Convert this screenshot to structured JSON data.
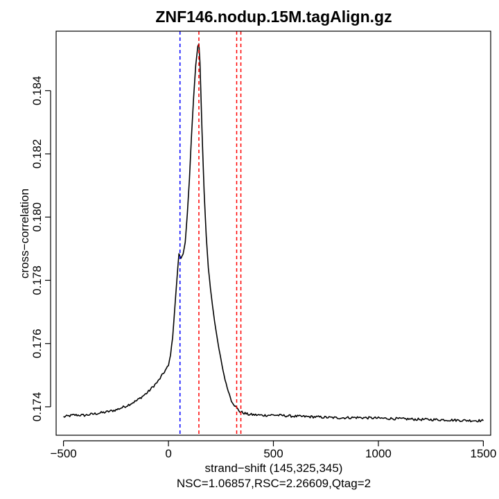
{
  "chart_data": {
    "type": "line",
    "title": "ZNF146.nodup.15M.tagAlign.gz",
    "xlabel": "strand−shift (145,325,345)",
    "subtitle": "NSC=1.06857,RSC=2.26609,Qtag=2",
    "ylabel": "cross−correlation",
    "xlim": [
      -535,
      1535
    ],
    "ylim": [
      0.1731,
      0.18588
    ],
    "xticks": [
      -500,
      0,
      500,
      1000,
      1500
    ],
    "xtick_labels": [
      "−500",
      "0",
      "500",
      "1000",
      "1500"
    ],
    "yticks": [
      0.174,
      0.176,
      0.178,
      0.18,
      0.182,
      0.184
    ],
    "ytick_labels": [
      "0.174",
      "0.176",
      "0.178",
      "0.180",
      "0.182",
      "0.184"
    ],
    "grid": false,
    "series": [
      {
        "color": "#000000",
        "x": [
          -500,
          -450,
          -400,
          -350,
          -300,
          -250,
          -200,
          -150,
          -100,
          -50,
          0,
          10,
          20,
          30,
          40,
          50,
          55,
          60,
          70,
          80,
          90,
          100,
          110,
          120,
          130,
          140,
          145,
          150,
          160,
          170,
          180,
          190,
          200,
          210,
          220,
          230,
          240,
          250,
          260,
          270,
          280,
          290,
          300,
          320,
          340,
          360,
          380,
          400,
          450,
          500,
          550,
          600,
          700,
          800,
          900,
          1000,
          1100,
          1200,
          1300,
          1400,
          1500
        ],
        "y": [
          0.17368,
          0.17374,
          0.17373,
          0.17378,
          0.17383,
          0.1739,
          0.17403,
          0.1742,
          0.17445,
          0.1748,
          0.1753,
          0.17565,
          0.1762,
          0.1771,
          0.178,
          0.17885,
          0.17875,
          0.1787,
          0.17885,
          0.1792,
          0.1801,
          0.1812,
          0.1826,
          0.1838,
          0.1848,
          0.1854,
          0.18548,
          0.1849,
          0.1827,
          0.1808,
          0.1794,
          0.1784,
          0.17775,
          0.1772,
          0.1767,
          0.17625,
          0.17585,
          0.1755,
          0.17515,
          0.17485,
          0.1746,
          0.1744,
          0.1742,
          0.174,
          0.17385,
          0.1738,
          0.17376,
          0.17375,
          0.17373,
          0.17374,
          0.17372,
          0.1737,
          0.17368,
          0.17365,
          0.17366,
          0.17364,
          0.17362,
          0.1736,
          0.17359,
          0.17357,
          0.17356
        ]
      }
    ],
    "vlines": [
      {
        "x": 55,
        "color": "#0000ff",
        "style": "dashed"
      },
      {
        "x": 145,
        "color": "#ff0000",
        "style": "dashed"
      },
      {
        "x": 325,
        "color": "#ff0000",
        "style": "dashed"
      },
      {
        "x": 345,
        "color": "#ff0000",
        "style": "dashed"
      }
    ]
  }
}
